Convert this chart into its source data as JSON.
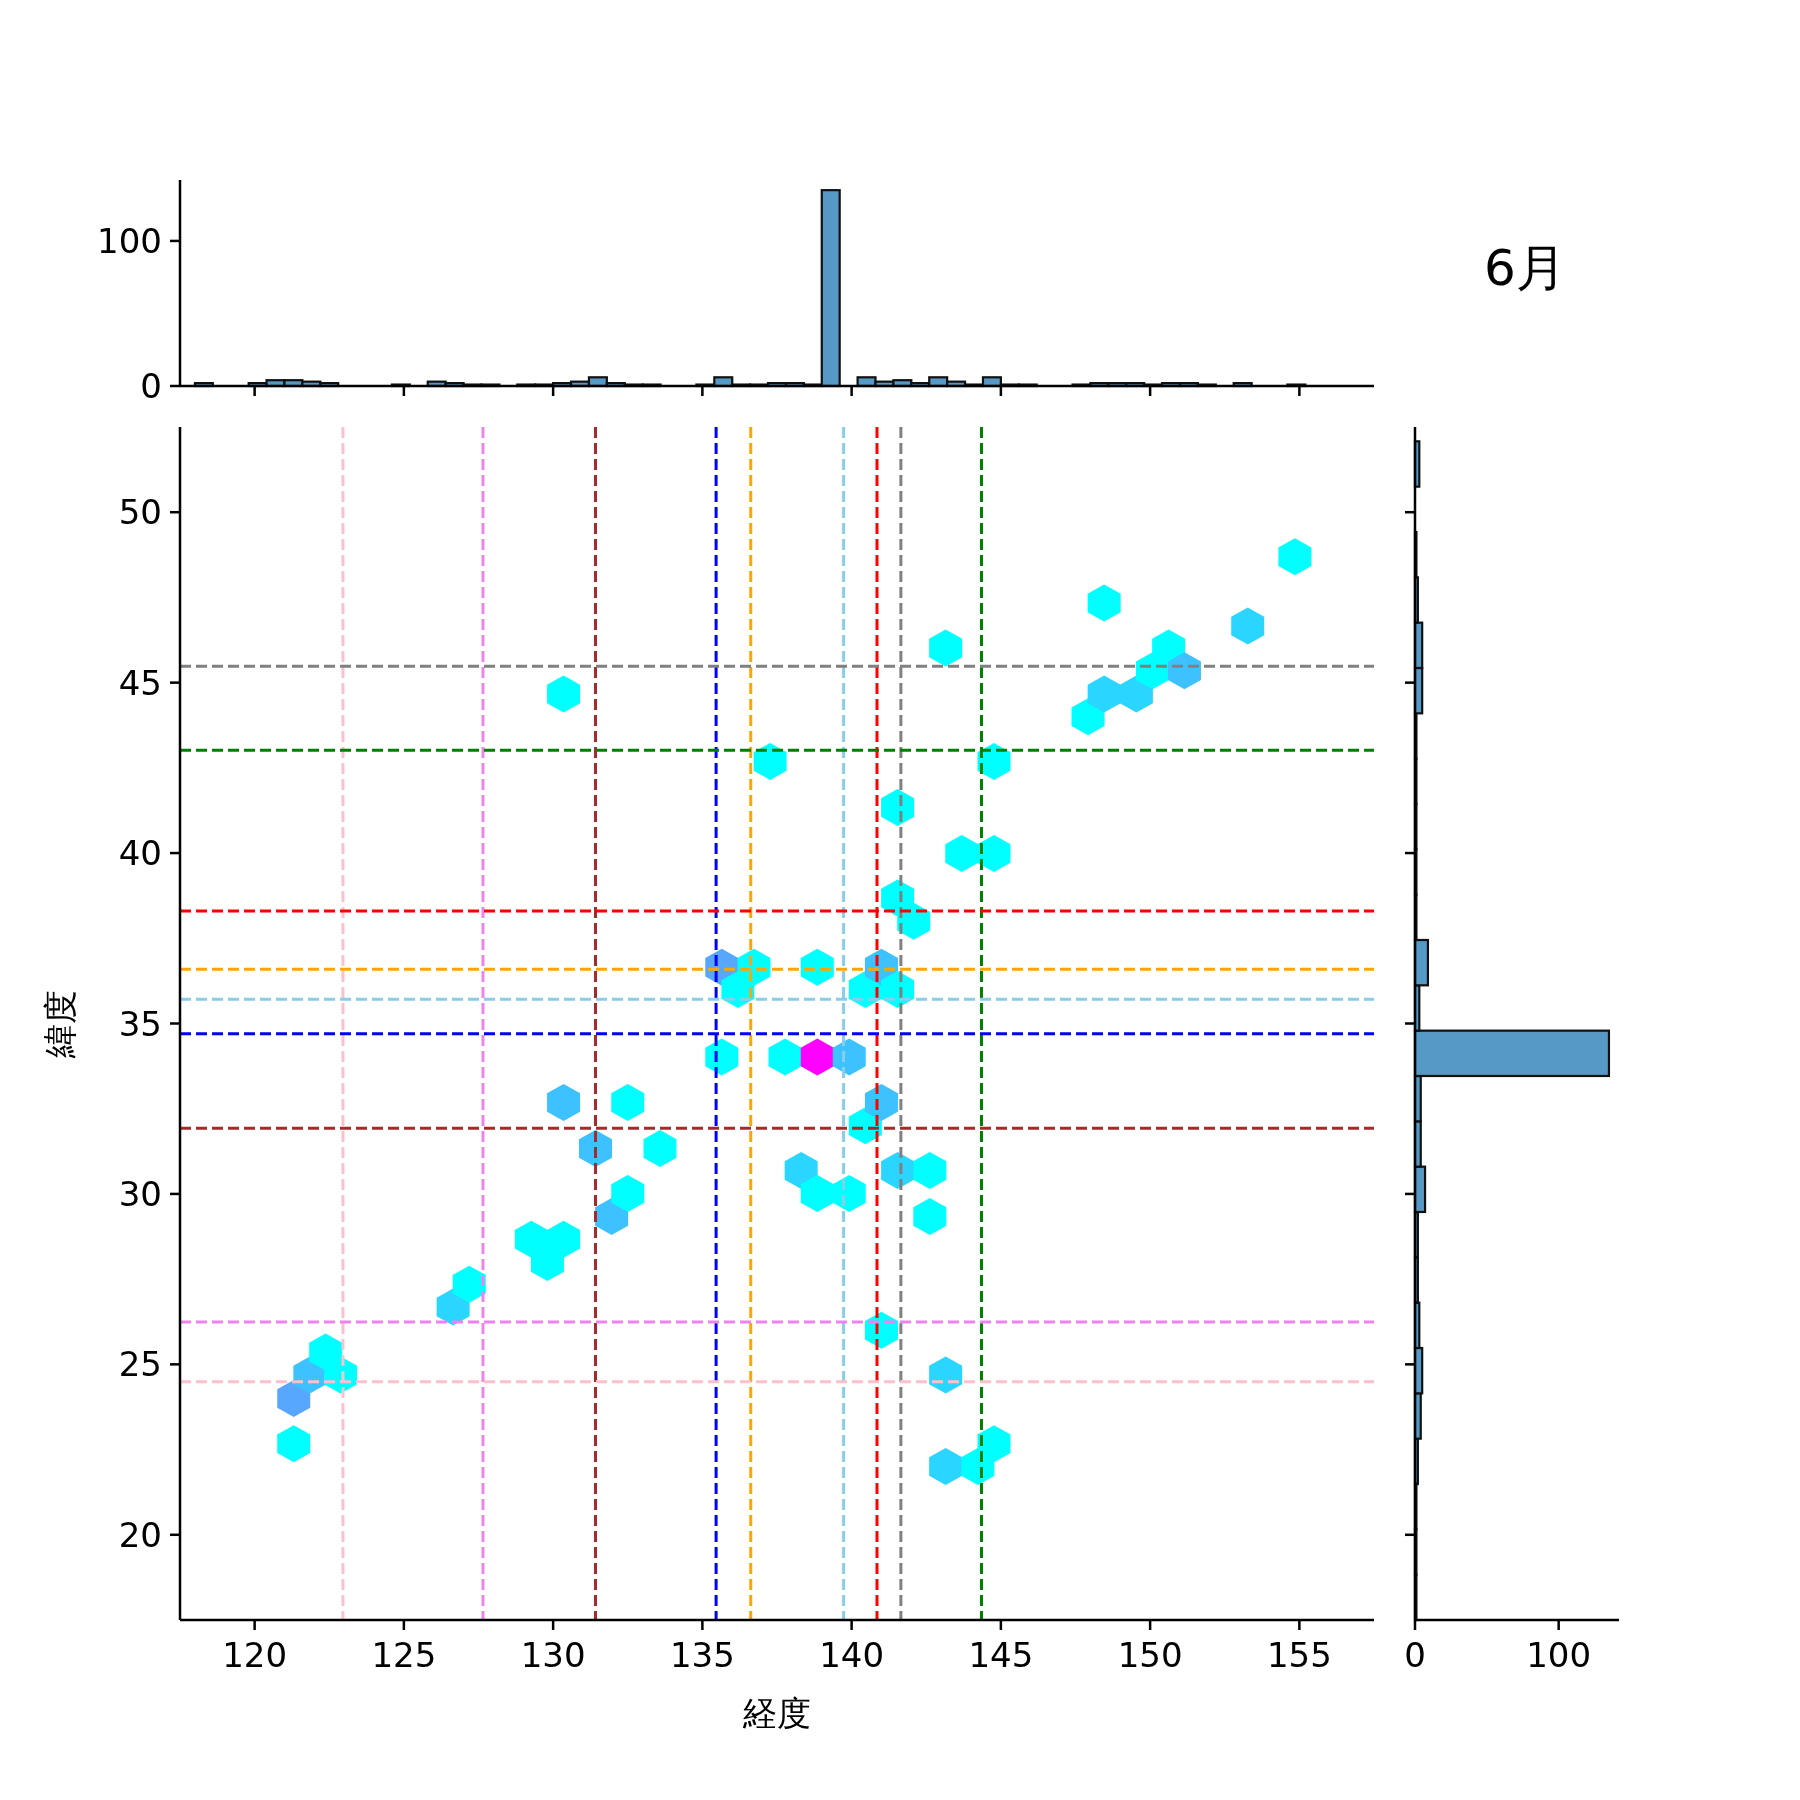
{
  "chart_data": [
    {
      "type": "histogram",
      "color": "#5799c6",
      "bins": [
        118.0,
        118.6,
        119.2,
        119.8,
        120.4,
        121.0,
        121.6,
        122.2,
        122.8,
        123.4,
        124.0,
        124.6,
        125.2,
        125.8,
        126.4,
        127.0,
        127.6,
        128.2,
        128.8,
        129.4,
        130.0,
        130.6,
        131.2,
        131.8,
        132.4,
        133.0,
        133.6,
        134.2,
        134.8,
        135.4,
        136.0,
        136.6,
        137.2,
        137.8,
        138.4,
        139.0,
        139.6,
        140.2,
        140.8,
        141.4,
        142.0,
        142.6,
        143.2,
        143.8,
        144.4,
        145.0,
        145.6,
        146.2,
        146.8,
        147.4,
        148.0,
        148.6,
        149.2,
        149.8,
        150.4,
        151.0,
        151.6,
        152.2,
        152.8,
        153.4,
        154.0,
        154.6,
        155.2
      ],
      "values": [
        2,
        0,
        0,
        2,
        4,
        4,
        3,
        2,
        0,
        0,
        0,
        1,
        0,
        3,
        2,
        1,
        1,
        0,
        1,
        1,
        2,
        3,
        6,
        2,
        1,
        1,
        0,
        0,
        1,
        6,
        1,
        1,
        2,
        2,
        1,
        135,
        null,
        6,
        3,
        4,
        2,
        6,
        3,
        1,
        6,
        1,
        1,
        0,
        0,
        1,
        2,
        2,
        2,
        1,
        2,
        2,
        1,
        0,
        2,
        0,
        0,
        1
      ],
      "xlim": [
        117.5,
        157.5
      ],
      "xticks": [
        120,
        125,
        130,
        135,
        140,
        145,
        150,
        155
      ],
      "ylim": [
        0,
        142
      ],
      "yticks": [
        0,
        100
      ],
      "tick_labels": "y"
    },
    {
      "type": "scatter",
      "xlabel": "経度",
      "ylabel": "緯度",
      "x": [
        121.31,
        121.31,
        121.85,
        122.38,
        122.88,
        126.65,
        127.19,
        129.27,
        130.35,
        129.81,
        131.96,
        132.5,
        131.42,
        133.58,
        130.35,
        132.5,
        130.35,
        135.65,
        135.65,
        136.73,
        136.19,
        137.27,
        137.77,
        138.85,
        139.92,
        138.85,
        138.31,
        138.85,
        139.92,
        140.46,
        141.0,
        140.46,
        141.0,
        141.54,
        141.0,
        141.54,
        142.62,
        142.62,
        141.54,
        142.08,
        141.54,
        143.69,
        144.77,
        144.77,
        143.15,
        143.15,
        143.15,
        144.23,
        144.77,
        147.92,
        148.46,
        149.54,
        150.08,
        150.62,
        151.15,
        148.46,
        153.27,
        154.85
      ],
      "values": [
        22.67,
        24.0,
        24.69,
        25.36,
        24.69,
        26.68,
        27.35,
        28.67,
        28.67,
        27.99,
        29.34,
        30.01,
        31.33,
        31.33,
        32.68,
        32.68,
        44.67,
        34.02,
        36.65,
        36.65,
        36.0,
        42.69,
        34.02,
        34.02,
        34.02,
        36.65,
        30.69,
        30.01,
        30.01,
        32.0,
        32.68,
        36.0,
        36.65,
        36.0,
        26.0,
        30.69,
        30.69,
        29.34,
        38.68,
        38.0,
        41.34,
        39.99,
        39.99,
        42.69,
        46.02,
        24.69,
        22.0,
        22.0,
        22.67,
        44.0,
        44.67,
        44.67,
        45.35,
        46.02,
        45.35,
        47.34,
        46.66,
        48.69
      ],
      "colors": [
        "#00ffff",
        "#58a7ff",
        "#3dc2ff",
        "#00ffff",
        "#00ffff",
        "#2ad5ff",
        "#00ffff",
        "#00ffff",
        "#00ffff",
        "#00ffff",
        "#3dc2ff",
        "#00ffff",
        "#3dc2ff",
        "#00ffff",
        "#3dc2ff",
        "#00ffff",
        "#00ffff",
        "#00ffff",
        "#58a7ff",
        "#00ffff",
        "#00ffff",
        "#00ffff",
        "#00ffff",
        "#ff00ff",
        "#3dc2ff",
        "#00ffff",
        "#2ad5ff",
        "#00ffff",
        "#00ffff",
        "#00ffff",
        "#3dc2ff",
        "#00ffff",
        "#3dc2ff",
        "#00ffff",
        "#00ffff",
        "#2ad5ff",
        "#00ffff",
        "#00ffff",
        "#00ffff",
        "#00ffff",
        "#00ffff",
        "#00ffff",
        "#00ffff",
        "#00ffff",
        "#00ffff",
        "#2ad5ff",
        "#2ad5ff",
        "#00ffff",
        "#00ffff",
        "#00ffff",
        "#2ad5ff",
        "#2ad5ff",
        "#00ffff",
        "#00ffff",
        "#3dc2ff",
        "#00ffff",
        "#2ad5ff",
        "#00ffff"
      ],
      "xlim": [
        117.5,
        157.5
      ],
      "xticks": [
        120,
        125,
        130,
        135,
        140,
        145,
        150,
        155
      ],
      "ylim": [
        17.5,
        52.5
      ],
      "yticks": [
        20,
        25,
        30,
        35,
        40,
        45,
        50
      ],
      "ref_lines": [
        {
          "axis": "x",
          "value": 122.96,
          "color": "#ffc0cb",
          "line_style": "dashed"
        },
        {
          "axis": "x",
          "value": 127.65,
          "color": "#ee82ee",
          "line_style": "dashed"
        },
        {
          "axis": "x",
          "value": 131.42,
          "color": "#a52a2a",
          "line_style": "dashed"
        },
        {
          "axis": "x",
          "value": 135.46,
          "color": "#0000ff",
          "line_style": "dashed"
        },
        {
          "axis": "x",
          "value": 136.62,
          "color": "#ffa500",
          "line_style": "dashed"
        },
        {
          "axis": "x",
          "value": 139.73,
          "color": "#87ceeb",
          "line_style": "dashed"
        },
        {
          "axis": "x",
          "value": 140.85,
          "color": "#ff0000",
          "line_style": "dashed"
        },
        {
          "axis": "x",
          "value": 141.65,
          "color": "#808080",
          "line_style": "dashed"
        },
        {
          "axis": "x",
          "value": 144.35,
          "color": "#008000",
          "line_style": "dashed"
        },
        {
          "axis": "y",
          "value": 45.48,
          "color": "#808080",
          "line_style": "dashed"
        },
        {
          "axis": "y",
          "value": 43.02,
          "color": "#008000",
          "line_style": "dashed"
        },
        {
          "axis": "y",
          "value": 38.3,
          "color": "#ff0000",
          "line_style": "dashed"
        },
        {
          "axis": "y",
          "value": 36.59,
          "color": "#ffa500",
          "line_style": "dashed"
        },
        {
          "axis": "y",
          "value": 35.71,
          "color": "#87ceeb",
          "line_style": "dashed"
        },
        {
          "axis": "y",
          "value": 34.7,
          "color": "#0000ff",
          "line_style": "dashed"
        },
        {
          "axis": "y",
          "value": 31.93,
          "color": "#a52a2a",
          "line_style": "dashed"
        },
        {
          "axis": "y",
          "value": 26.24,
          "color": "#ee82ee",
          "line_style": "dashed"
        },
        {
          "axis": "y",
          "value": 24.49,
          "color": "#ffc0cb",
          "line_style": "dashed"
        }
      ]
    },
    {
      "type": "histogram",
      "title": "6月",
      "orientation": "horizontal",
      "color": "#5799c6",
      "bins": [
        17.5,
        18.83,
        20.16,
        21.49,
        22.82,
        24.15,
        25.48,
        26.81,
        28.14,
        29.47,
        30.8,
        32.13,
        33.46,
        34.79,
        36.12,
        37.45,
        38.78,
        40.11,
        41.44,
        42.77,
        44.1,
        45.43,
        46.76,
        48.09,
        49.42,
        50.75,
        52.08
      ],
      "values": [
        1,
        1,
        1,
        2,
        4,
        5,
        3,
        2,
        2,
        7,
        4,
        4,
        135,
        3,
        9,
        1,
        1,
        1,
        1,
        1,
        5,
        5,
        2,
        1,
        0,
        3
      ],
      "xlim": [
        0,
        142
      ],
      "xticks": [
        0,
        100
      ],
      "ylim": [
        17.5,
        52.5
      ],
      "yticks": [
        20,
        25,
        30,
        35,
        40,
        45,
        50
      ],
      "tick_labels": "x"
    }
  ]
}
